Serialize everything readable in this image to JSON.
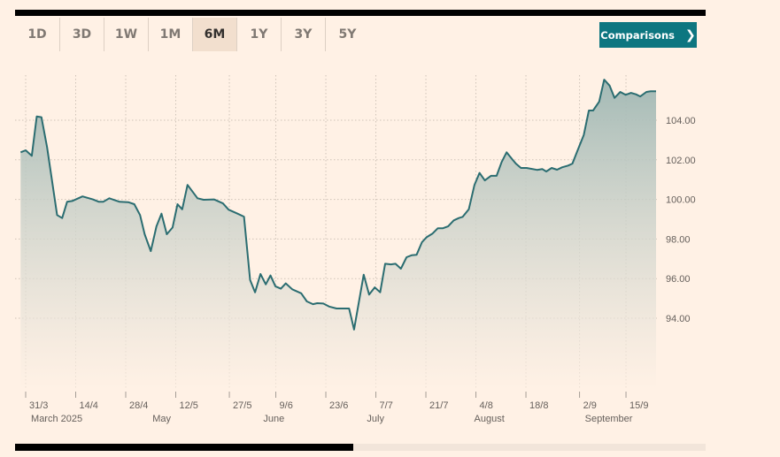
{
  "tabs": [
    {
      "label": "1D",
      "active": false
    },
    {
      "label": "3D",
      "active": false
    },
    {
      "label": "1W",
      "active": false
    },
    {
      "label": "1M",
      "active": false
    },
    {
      "label": "6M",
      "active": true
    },
    {
      "label": "1Y",
      "active": false
    },
    {
      "label": "3Y",
      "active": false
    },
    {
      "label": "5Y",
      "active": false
    }
  ],
  "comparisons_button": {
    "label": "Comparisons",
    "icon": "chevron-right-icon"
  },
  "colors": {
    "line": "#2b6d71",
    "accent": "#0d7680",
    "background": "#fff1e5",
    "fill_top": "#9fb7b3"
  },
  "scroll": {
    "position_fraction": 0.49
  },
  "chart_data": {
    "type": "area",
    "x_unit": "days since 31/3/2025",
    "ylim": [
      90.4,
      106.3
    ],
    "xlim": [
      -1.5,
      177
    ],
    "grid": true,
    "yticks": [
      {
        "value": 94,
        "label": "94.00"
      },
      {
        "value": 96,
        "label": "96.00"
      },
      {
        "value": 98,
        "label": "98.00"
      },
      {
        "value": 100,
        "label": "100.00"
      },
      {
        "value": 102,
        "label": "102.00"
      },
      {
        "value": 104,
        "label": "104.00"
      }
    ],
    "xticks": [
      {
        "day": 0,
        "label": "31/3"
      },
      {
        "day": 14,
        "label": "14/4"
      },
      {
        "day": 28,
        "label": "28/4"
      },
      {
        "day": 42,
        "label": "12/5"
      },
      {
        "day": 57,
        "label": "27/5"
      },
      {
        "day": 70,
        "label": "9/6"
      },
      {
        "day": 84,
        "label": "23/6"
      },
      {
        "day": 98,
        "label": "7/7"
      },
      {
        "day": 112,
        "label": "21/7"
      },
      {
        "day": 126,
        "label": "4/8"
      },
      {
        "day": 140,
        "label": "18/8"
      },
      {
        "day": 155,
        "label": "2/9"
      },
      {
        "day": 168,
        "label": "15/9"
      }
    ],
    "month_labels": [
      {
        "day": 1,
        "label": "March 2025"
      },
      {
        "day": 35,
        "label": "May"
      },
      {
        "day": 66,
        "label": "June"
      },
      {
        "day": 95,
        "label": "July"
      },
      {
        "day": 125,
        "label": "August"
      },
      {
        "day": 156,
        "label": "September"
      }
    ],
    "x": [
      -1.4,
      0,
      1.7,
      3.1,
      4.4,
      6,
      8.8,
      10.2,
      11.6,
      13,
      15.9,
      18.8,
      20.5,
      21.7,
      23.4,
      26.3,
      28.7,
      30.4,
      32,
      33.3,
      35,
      36.6,
      38,
      39.5,
      41.1,
      42.5,
      43.8,
      45.3,
      48.1,
      49.8,
      52.7,
      55.2,
      56.8,
      59.3,
      61.1,
      62.8,
      64.2,
      65.7,
      67.2,
      68.5,
      69.9,
      71.4,
      72.8,
      74.6,
      77.1,
      78.7,
      80.4,
      81.6,
      83.3,
      84.9,
      87,
      90.5,
      91.9,
      94.6,
      96.1,
      97.7,
      99.2,
      100.6,
      102.2,
      103.5,
      105,
      106.6,
      108,
      109.4,
      110.9,
      112.2,
      113.8,
      115.3,
      116.7,
      118.2,
      119.8,
      121.2,
      122.3,
      124,
      125.6,
      127,
      128.5,
      130.2,
      131.8,
      133.2,
      134.6,
      136.1,
      137.2,
      138.6,
      140.2,
      143.1,
      144.6,
      145.7,
      147.2,
      148.7,
      150.1,
      151.8,
      153,
      154.3,
      156.2,
      157.6,
      158.8,
      160.5,
      161.9,
      163.4,
      164.8,
      166.4,
      167.9,
      169.4,
      170.8,
      172,
      173.7,
      174.9,
      176.4
    ],
    "y": [
      102.38,
      102.48,
      102.2,
      104.19,
      104.15,
      102.63,
      99.21,
      99.06,
      99.88,
      99.92,
      100.15,
      100,
      99.88,
      99.88,
      100.06,
      99.88,
      99.86,
      99.76,
      99.21,
      98.24,
      97.39,
      98.64,
      99.28,
      98.24,
      98.58,
      99.76,
      99.5,
      100.73,
      100.06,
      99.98,
      100,
      99.8,
      99.48,
      99.28,
      99.13,
      95.93,
      95.31,
      96.23,
      95.71,
      96.16,
      95.61,
      95.49,
      95.76,
      95.46,
      95.26,
      94.85,
      94.71,
      94.76,
      94.74,
      94.59,
      94.49,
      94.49,
      93.43,
      96.2,
      95.19,
      95.56,
      95.31,
      96.75,
      96.72,
      96.75,
      96.5,
      97.08,
      97.18,
      97.2,
      97.84,
      98.09,
      98.27,
      98.54,
      98.54,
      98.64,
      98.94,
      99.06,
      99.12,
      99.5,
      100.73,
      101.34,
      100.96,
      101.19,
      101.19,
      101.89,
      102.38,
      102.04,
      101.81,
      101.59,
      101.59,
      101.49,
      101.53,
      101.41,
      101.59,
      101.5,
      101.62,
      101.71,
      101.81,
      102.41,
      103.26,
      104.49,
      104.49,
      104.94,
      106.05,
      105.75,
      105.13,
      105.43,
      105.28,
      105.38,
      105.31,
      105.2,
      105.43,
      105.46,
      105.46
    ]
  }
}
